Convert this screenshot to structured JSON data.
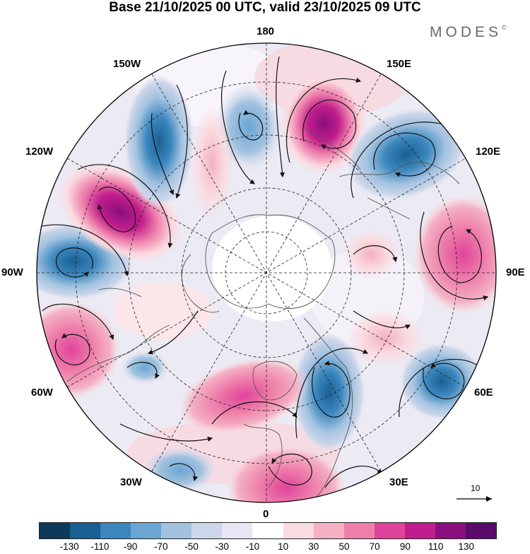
{
  "title": "Base 21/10/2025 00 UTC, valid 23/10/2025 09 UTC",
  "brand": {
    "name": "MODES",
    "symbol": "©"
  },
  "longitude_labels": {
    "top": "180",
    "bottom": "0",
    "left": "90W",
    "right": "90E",
    "upper_left_1": "150W",
    "upper_left_2": "120W",
    "upper_right_1": "150E",
    "upper_right_2": "120E",
    "lower_left_1": "60W",
    "lower_left_2": "30W",
    "lower_right_1": "60E",
    "lower_right_2": "30E"
  },
  "vector_scale": {
    "label": "10",
    "icon": "arrow-right-icon"
  },
  "colorbar": {
    "colors": [
      "#0d3a5c",
      "#1a5f92",
      "#3a86bd",
      "#6ba6d2",
      "#a2c2e0",
      "#ccd6ea",
      "#e8e6f2",
      "#ffffff",
      "#fadbe0",
      "#f4b1c4",
      "#ee7fab",
      "#e0449a",
      "#c01e8c",
      "#8a0f7e",
      "#5a0a6a"
    ],
    "ticks": [
      "-130",
      "-110",
      "-90",
      "-70",
      "-50",
      "-30",
      "-10",
      "10",
      "30",
      "50",
      "70",
      "90",
      "110",
      "130"
    ]
  },
  "chart_data": {
    "type": "polar-stereographic-map",
    "projection": "north polar stereographic",
    "field": "geopotential height anomaly with wind vectors",
    "color_levels": [
      -130,
      -110,
      -90,
      -70,
      -50,
      -30,
      -10,
      10,
      30,
      50,
      70,
      90,
      110,
      130
    ],
    "anomaly_centres": [
      {
        "lon_label": "between 180 and 150E",
        "sign": "positive",
        "peak": 110
      },
      {
        "lon_label": "near 120E-150E",
        "sign": "negative",
        "peak": -90
      },
      {
        "lon_label": "near 90E",
        "sign": "positive",
        "peak": 50
      },
      {
        "lon_label": "near 60E",
        "sign": "negative",
        "peak": -70
      },
      {
        "lon_label": "near 30E",
        "sign": "negative",
        "peak": -90
      },
      {
        "lon_label": "near 0",
        "sign": "positive",
        "peak": 70
      },
      {
        "lon_label": "near 30W",
        "sign": "negative",
        "peak": -50
      },
      {
        "lon_label": "near 60W",
        "sign": "positive",
        "peak": 70
      },
      {
        "lon_label": "near 90W",
        "sign": "negative",
        "peak": -70
      },
      {
        "lon_label": "near 120W",
        "sign": "positive",
        "peak": 110
      },
      {
        "lon_label": "near 150W",
        "sign": "negative",
        "peak": -50
      },
      {
        "lon_label": "near 180",
        "sign": "negative",
        "peak": -50
      }
    ]
  }
}
